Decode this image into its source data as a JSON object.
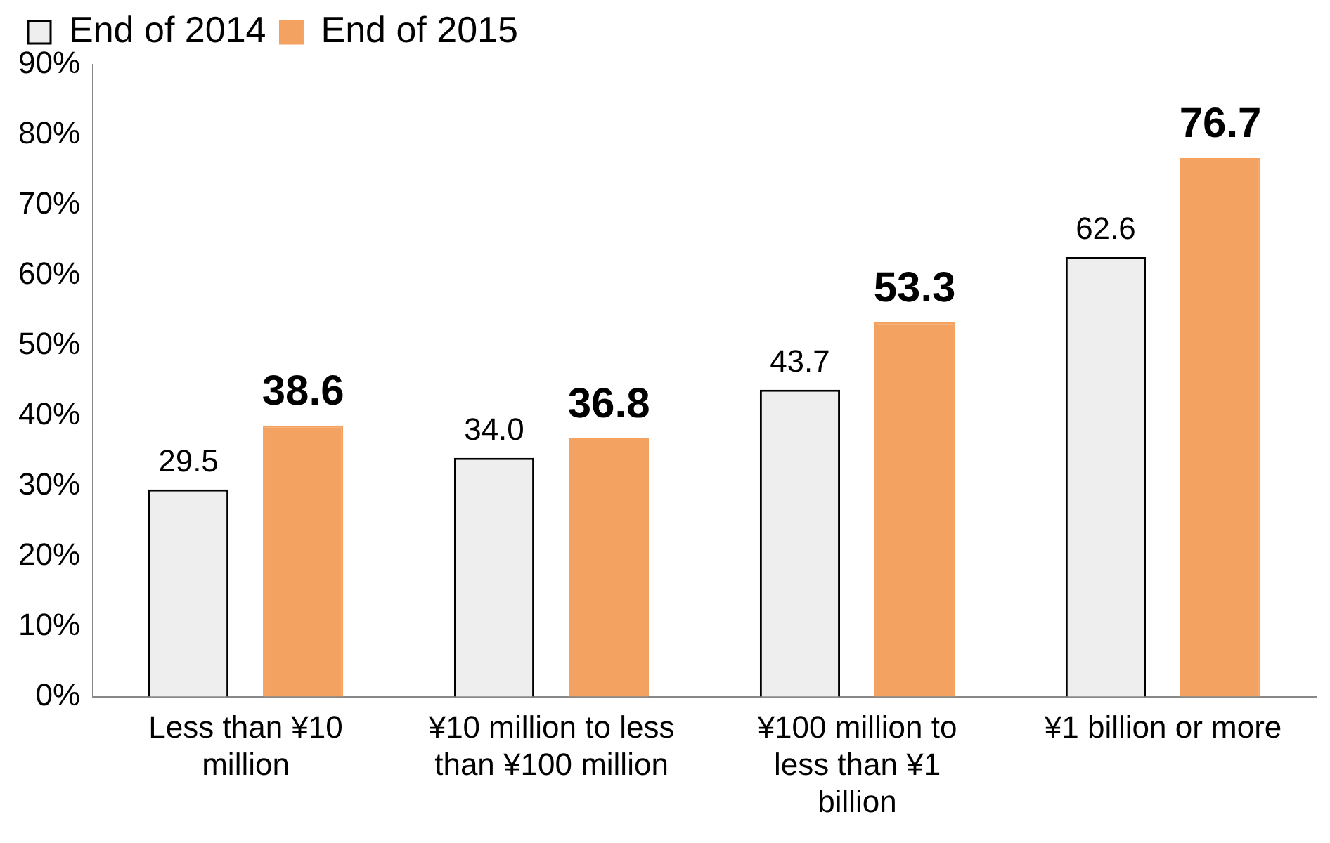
{
  "chart_data": {
    "type": "bar",
    "categories": [
      "Less than ¥10 million",
      "¥10 million to less than ¥100 million",
      "¥100 million to less than ¥1 billion",
      "¥1 billion or more"
    ],
    "series": [
      {
        "name": "End of 2014",
        "color": "#eeeeee",
        "values": [
          29.5,
          34.0,
          43.7,
          62.6
        ],
        "value_labels": [
          "29.5",
          "34.0",
          "43.7",
          "62.6"
        ]
      },
      {
        "name": "End of 2015",
        "color": "#f4a261",
        "values": [
          38.6,
          36.8,
          53.3,
          76.7
        ],
        "value_labels": [
          "38.6",
          "36.8",
          "53.3",
          "76.7"
        ]
      }
    ],
    "ylim": [
      0,
      90
    ],
    "yticks": [
      {
        "value": 0,
        "label": "0%"
      },
      {
        "value": 10,
        "label": "10%"
      },
      {
        "value": 20,
        "label": "20%"
      },
      {
        "value": 30,
        "label": "30%"
      },
      {
        "value": 40,
        "label": "40%"
      },
      {
        "value": 50,
        "label": "50%"
      },
      {
        "value": 60,
        "label": "60%"
      },
      {
        "value": 70,
        "label": "70%"
      },
      {
        "value": 80,
        "label": "80%"
      },
      {
        "value": 90,
        "label": "90%"
      }
    ],
    "grid": false,
    "legend": "top left"
  }
}
